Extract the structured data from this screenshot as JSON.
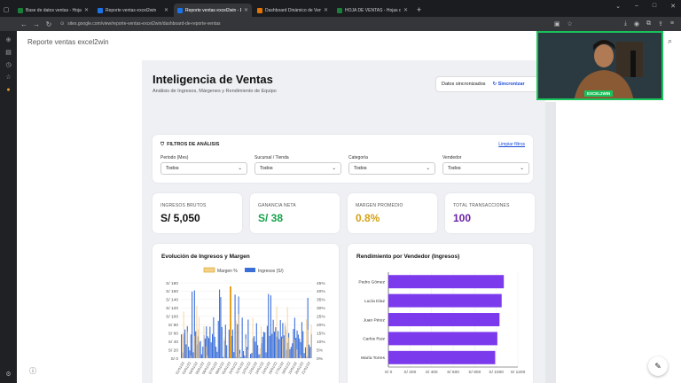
{
  "tabs": [
    {
      "label": "Base de datos ventas - Hojas de",
      "favcolor": "#188038",
      "active": false
    },
    {
      "label": "Reporte ventas excel2win",
      "favcolor": "#1a73e8",
      "active": false
    },
    {
      "label": "Reporte ventas excel2win - Excl",
      "favcolor": "#1a73e8",
      "active": true
    },
    {
      "label": "Dashboard Dinámico de Ventas",
      "favcolor": "#e37400",
      "active": false
    },
    {
      "label": "HOJA DE VENTAS - Hojas de cál",
      "favcolor": "#188038",
      "active": false
    }
  ],
  "url": "sites.google.com/view/reporte-ventas-excel2win/dashboard-de-reporte-ventas",
  "site_name": "Reporte ventas excel2win",
  "header": {
    "title": "Inteligencia de Ventas",
    "subtitle": "Análisis de Ingresos, Márgenes y Rendimiento de Equipo",
    "sync_status": "Datos sincronizados",
    "sync_button": "Sincronizar"
  },
  "filters": {
    "title": "FILTROS DE ANÁLISIS",
    "clear": "Limpiar filtros",
    "items": [
      {
        "label": "Periodo (Mes)",
        "value": "Todos"
      },
      {
        "label": "Sucursal / Tienda",
        "value": "Todos"
      },
      {
        "label": "Categoría",
        "value": "Todos"
      },
      {
        "label": "Vendedor",
        "value": "Todos"
      }
    ]
  },
  "kpis": [
    {
      "label": "INGRESOS BRUTOS",
      "value": "S/ 5,050",
      "color": "#111111"
    },
    {
      "label": "GANANCIA NETA",
      "value": "S/ 38",
      "color": "#15a34a"
    },
    {
      "label": "MARGEN PROMEDIO",
      "value": "0.8%",
      "color": "#d4a017"
    },
    {
      "label": "TOTAL TRANSACCIONES",
      "value": "100",
      "color": "#6b21a8"
    }
  ],
  "trend_chart": {
    "title": "Evolución de Ingresos y Margen",
    "legend": [
      "Margen %",
      "Ingresos (S/)"
    ],
    "y_left_ticks": [
      "S/ 180",
      "S/ 160",
      "S/ 140",
      "S/ 120",
      "S/ 100",
      "S/ 80",
      "S/ 60",
      "S/ 40",
      "S/ 20",
      "S/ 0"
    ],
    "y_right_ticks": [
      "45%",
      "40%",
      "35%",
      "30%",
      "25%",
      "20%",
      "15%",
      "10%",
      "5%",
      "0%"
    ],
    "x_ticks": [
      "01/01/22",
      "03/01/22",
      "04/01/22",
      "05/01/22",
      "06/01/22",
      "07/01/22",
      "08/01/22",
      "09/01/22",
      "10/01/22",
      "11/01/22",
      "12/01/22",
      "13/01/22",
      "14/01/22",
      "15/01/22",
      "16/01/22",
      "17/01/22",
      "18/01/22",
      "19/01/22",
      "20/01/22",
      "21/01/22"
    ]
  },
  "chart_data": {
    "type": "bar",
    "title": "Rendimiento por Vendedor (Ingresos)",
    "orientation": "horizontal",
    "categories": [
      "Pedro Gómez",
      "Lucía Díaz",
      "Juan Pérez",
      "Carlos Ruiz",
      "María Torres"
    ],
    "values": [
      1070,
      1050,
      1030,
      1010,
      990
    ],
    "xlim": [
      0,
      1200
    ],
    "x_ticks": [
      "S/ 0",
      "S/ 200",
      "S/ 400",
      "S/ 600",
      "S/ 800",
      "S/ 1000",
      "S/ 1200"
    ],
    "color": "#7c3aed"
  },
  "camera_caption": "EXCEL2WIN"
}
